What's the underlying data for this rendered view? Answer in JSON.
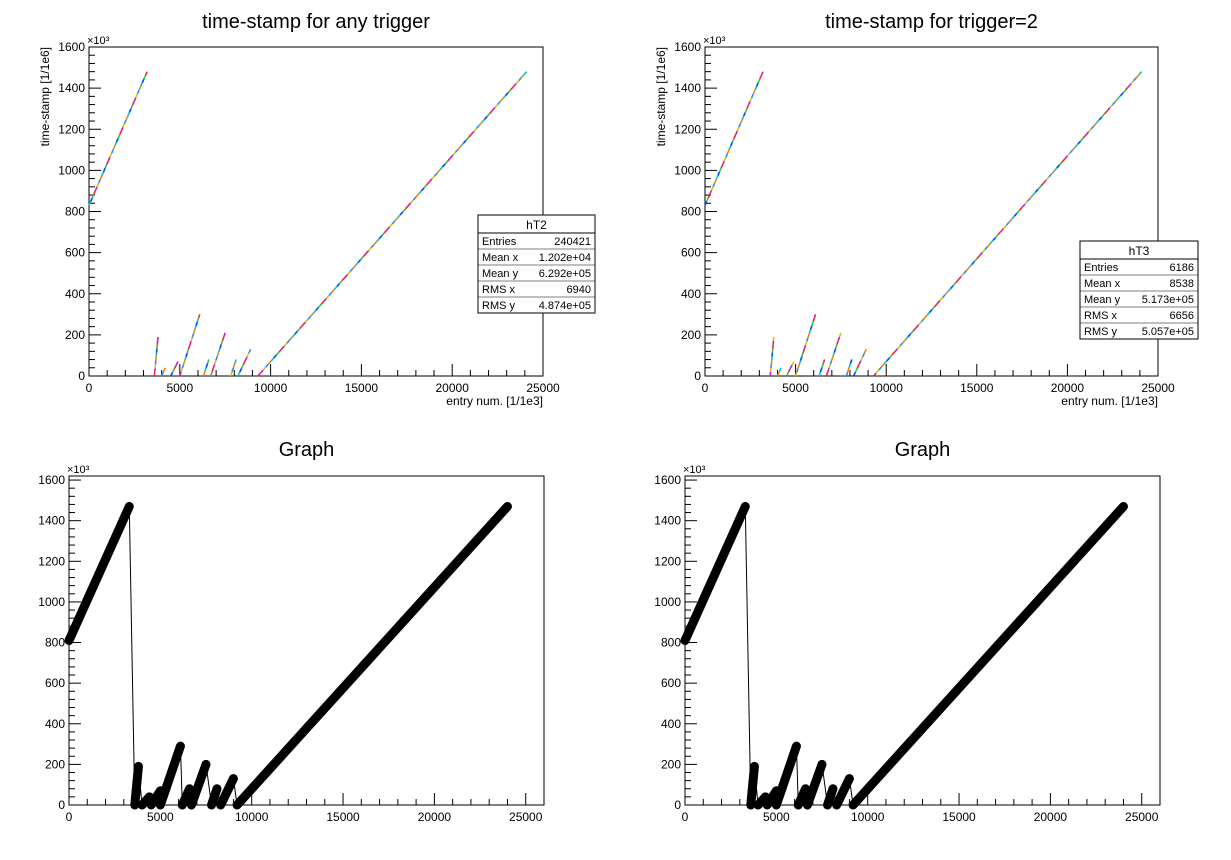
{
  "chart_data": [
    {
      "type": "scatter",
      "title": "time-stamp for any trigger",
      "xlabel": "entry num. [1/1e3]",
      "ylabel": "time-stamp [1/1e6]",
      "y_exponent": "×10³",
      "xlim": [
        0,
        25000
      ],
      "ylim": [
        0,
        1600
      ],
      "x_ticks": [
        "0",
        "5000",
        "10000",
        "15000",
        "20000",
        "25000"
      ],
      "y_ticks": [
        "0",
        "200",
        "400",
        "600",
        "800",
        "1000",
        "1200",
        "1400",
        "1600"
      ],
      "style": "colz",
      "segments": [
        {
          "x": [
            0,
            3200
          ],
          "y": [
            830,
            1480
          ]
        },
        {
          "x": [
            3600,
            3800
          ],
          "y": [
            0,
            190
          ]
        },
        {
          "x": [
            4000,
            4200
          ],
          "y": [
            0,
            40
          ]
        },
        {
          "x": [
            4500,
            4900
          ],
          "y": [
            0,
            70
          ]
        },
        {
          "x": [
            5000,
            6100
          ],
          "y": [
            0,
            300
          ]
        },
        {
          "x": [
            6300,
            6600
          ],
          "y": [
            0,
            80
          ]
        },
        {
          "x": [
            6700,
            7500
          ],
          "y": [
            0,
            210
          ]
        },
        {
          "x": [
            7800,
            8100
          ],
          "y": [
            0,
            80
          ]
        },
        {
          "x": [
            8200,
            8900
          ],
          "y": [
            0,
            130
          ]
        },
        {
          "x": [
            9300,
            24100
          ],
          "y": [
            0,
            1480
          ]
        }
      ],
      "stats": {
        "name": "hT2",
        "rows": [
          {
            "label": "Entries",
            "value": "240421"
          },
          {
            "label": "Mean x",
            "value": "1.202e+04"
          },
          {
            "label": "Mean y",
            "value": "6.292e+05"
          },
          {
            "label": "RMS x",
            "value": "6940"
          },
          {
            "label": "RMS y",
            "value": "4.874e+05"
          }
        ]
      }
    },
    {
      "type": "scatter",
      "title": "time-stamp for trigger=2",
      "xlabel": "entry num. [1/1e3]",
      "ylabel": "time-stamp [1/1e6]",
      "y_exponent": "×10³",
      "xlim": [
        0,
        25000
      ],
      "ylim": [
        0,
        1600
      ],
      "x_ticks": [
        "0",
        "5000",
        "10000",
        "15000",
        "20000",
        "25000"
      ],
      "y_ticks": [
        "0",
        "200",
        "400",
        "600",
        "800",
        "1000",
        "1200",
        "1400",
        "1600"
      ],
      "style": "colz",
      "segments": [
        {
          "x": [
            0,
            3200
          ],
          "y": [
            830,
            1480
          ]
        },
        {
          "x": [
            3600,
            3800
          ],
          "y": [
            0,
            190
          ]
        },
        {
          "x": [
            4000,
            4200
          ],
          "y": [
            0,
            40
          ]
        },
        {
          "x": [
            4500,
            4900
          ],
          "y": [
            0,
            70
          ]
        },
        {
          "x": [
            5000,
            6100
          ],
          "y": [
            0,
            300
          ]
        },
        {
          "x": [
            6300,
            6600
          ],
          "y": [
            0,
            80
          ]
        },
        {
          "x": [
            6700,
            7500
          ],
          "y": [
            0,
            210
          ]
        },
        {
          "x": [
            7800,
            8100
          ],
          "y": [
            0,
            80
          ]
        },
        {
          "x": [
            8200,
            8900
          ],
          "y": [
            0,
            130
          ]
        },
        {
          "x": [
            9300,
            24100
          ],
          "y": [
            0,
            1480
          ]
        }
      ],
      "stats": {
        "name": "hT3",
        "rows": [
          {
            "label": "Entries",
            "value": "6186"
          },
          {
            "label": "Mean x",
            "value": "8538"
          },
          {
            "label": "Mean y",
            "value": "5.173e+05"
          },
          {
            "label": "RMS x",
            "value": "6656"
          },
          {
            "label": "RMS y",
            "value": "5.057e+05"
          }
        ]
      }
    },
    {
      "type": "scatter",
      "title": "Graph",
      "xlabel": "",
      "ylabel": "",
      "y_exponent": "×10³",
      "xlim": [
        0,
        26000
      ],
      "ylim": [
        0,
        1620
      ],
      "x_ticks": [
        "0",
        "5000",
        "10000",
        "15000",
        "20000",
        "25000"
      ],
      "y_ticks": [
        "0",
        "200",
        "400",
        "600",
        "800",
        "1000",
        "1200",
        "1400",
        "1600"
      ],
      "style": "markers",
      "segments": [
        {
          "x": [
            0,
            3300
          ],
          "y": [
            810,
            1470
          ]
        },
        {
          "x": [
            3600,
            3800
          ],
          "y": [
            0,
            190
          ]
        },
        {
          "x": [
            4000,
            4400
          ],
          "y": [
            0,
            40
          ]
        },
        {
          "x": [
            4500,
            5000
          ],
          "y": [
            0,
            70
          ]
        },
        {
          "x": [
            5000,
            6100
          ],
          "y": [
            0,
            290
          ]
        },
        {
          "x": [
            6200,
            6600
          ],
          "y": [
            0,
            80
          ]
        },
        {
          "x": [
            6700,
            7500
          ],
          "y": [
            0,
            200
          ]
        },
        {
          "x": [
            7800,
            8100
          ],
          "y": [
            0,
            80
          ]
        },
        {
          "x": [
            8300,
            9000
          ],
          "y": [
            0,
            130
          ]
        },
        {
          "x": [
            9200,
            24000
          ],
          "y": [
            0,
            1470
          ]
        }
      ]
    },
    {
      "type": "scatter",
      "title": "Graph",
      "xlabel": "",
      "ylabel": "",
      "y_exponent": "×10³",
      "xlim": [
        0,
        26000
      ],
      "ylim": [
        0,
        1620
      ],
      "x_ticks": [
        "0",
        "5000",
        "10000",
        "15000",
        "20000",
        "25000"
      ],
      "y_ticks": [
        "0",
        "200",
        "400",
        "600",
        "800",
        "1000",
        "1200",
        "1400",
        "1600"
      ],
      "style": "markers",
      "segments": [
        {
          "x": [
            0,
            3300
          ],
          "y": [
            810,
            1470
          ]
        },
        {
          "x": [
            3600,
            3800
          ],
          "y": [
            0,
            190
          ]
        },
        {
          "x": [
            4000,
            4400
          ],
          "y": [
            0,
            40
          ]
        },
        {
          "x": [
            4500,
            5000
          ],
          "y": [
            0,
            70
          ]
        },
        {
          "x": [
            5000,
            6100
          ],
          "y": [
            0,
            290
          ]
        },
        {
          "x": [
            6200,
            6600
          ],
          "y": [
            0,
            80
          ]
        },
        {
          "x": [
            6700,
            7500
          ],
          "y": [
            0,
            200
          ]
        },
        {
          "x": [
            7800,
            8100
          ],
          "y": [
            0,
            80
          ]
        },
        {
          "x": [
            8300,
            9000
          ],
          "y": [
            0,
            130
          ]
        },
        {
          "x": [
            9200,
            24000
          ],
          "y": [
            0,
            1470
          ]
        }
      ]
    }
  ]
}
